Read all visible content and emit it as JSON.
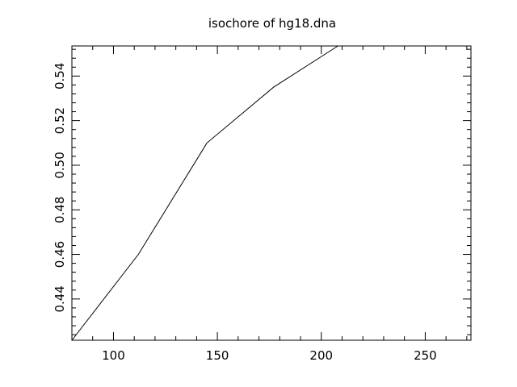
{
  "chart_data": {
    "type": "line",
    "title": "isochore of hg18.dna",
    "xlabel": "",
    "ylabel": "",
    "xlim": [
      80,
      272
    ],
    "ylim": [
      0.4215,
      0.5535
    ],
    "grid": false,
    "legend": "none",
    "x_major_ticks": [
      100,
      150,
      200,
      250
    ],
    "y_major_ticks": [
      0.44,
      0.46,
      0.48,
      0.5,
      0.52,
      0.54
    ],
    "x_tick_labels": [
      "100",
      "150",
      "200",
      "250"
    ],
    "y_tick_labels": [
      "0.44",
      "0.46",
      "0.48",
      "0.50",
      "0.52",
      "0.54"
    ],
    "series": [
      {
        "x": [
          80,
          112,
          145,
          177,
          208
        ],
        "y": [
          0.4215,
          0.46,
          0.51,
          0.535,
          0.5535
        ]
      }
    ],
    "colors": {
      "line": "#000000",
      "axes": "#000000",
      "background": "#ffffff"
    }
  }
}
